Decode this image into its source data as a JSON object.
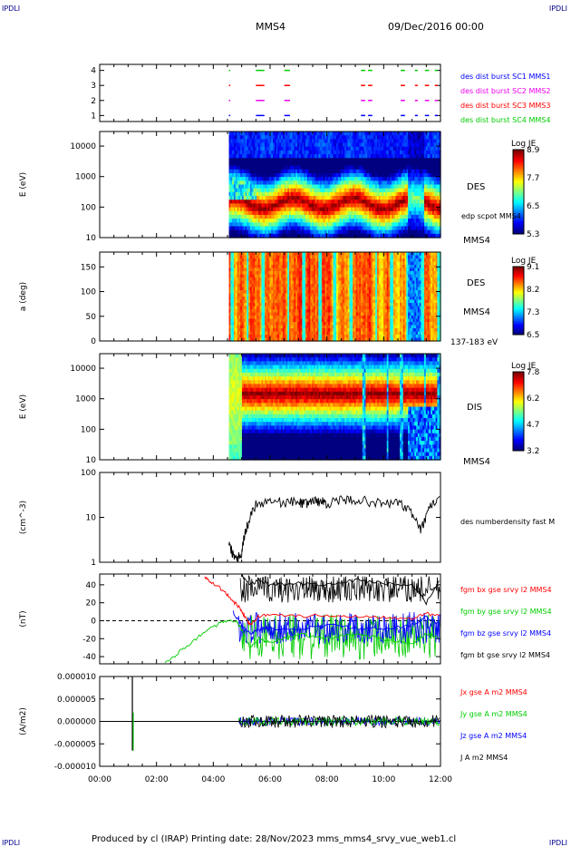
{
  "corners": {
    "tl": "IPDLI",
    "tr": "IPDLI",
    "bl": "IPDLI",
    "br": "IPDLI"
  },
  "header": {
    "spacecraft": "MMS4",
    "date": "09/Dec/2016 00:00"
  },
  "footer": {
    "text": "Produced by cl (IRAP)   Printing date: 28/Nov/2023   mms_mms4_srvy_vue_web1.cl"
  },
  "colors": {
    "blue": "#0000ff",
    "red": "#ff0000",
    "green": "#00cc00",
    "magenta": "#ee00ee",
    "black": "#000000"
  },
  "chart_data": [
    {
      "id": "burst",
      "type": "line",
      "ylim": [
        0.6,
        4.4
      ],
      "yticks": [
        "1",
        "2",
        "3",
        "4"
      ],
      "legend": [
        {
          "text": "des dist burst SC1 MMS1",
          "color": "#0000ff"
        },
        {
          "text": "des dist burst SC2 MMS2",
          "color": "#ee00ee"
        },
        {
          "text": "des dist burst SC3 MMS3",
          "color": "#ff0000"
        },
        {
          "text": "des dist burst SC4 MMS4",
          "color": "#00cc00"
        }
      ],
      "series": [
        {
          "level": 4,
          "color": "#00cc00",
          "intervals": [
            [
              4.55,
              4.6
            ],
            [
              5.5,
              5.8
            ],
            [
              6.5,
              6.7
            ],
            [
              9.2,
              9.35
            ],
            [
              9.45,
              9.6
            ],
            [
              10.6,
              10.75
            ],
            [
              11.1,
              11.2
            ],
            [
              11.45,
              11.6
            ],
            [
              11.8,
              11.9
            ]
          ]
        },
        {
          "level": 3,
          "color": "#ff0000",
          "intervals": [
            [
              4.55,
              4.6
            ],
            [
              5.5,
              5.8
            ],
            [
              6.5,
              6.7
            ],
            [
              9.2,
              9.35
            ],
            [
              9.45,
              9.6
            ],
            [
              10.6,
              10.75
            ],
            [
              11.1,
              11.2
            ],
            [
              11.45,
              11.6
            ],
            [
              11.8,
              11.9
            ]
          ]
        },
        {
          "level": 2,
          "color": "#ee00ee",
          "intervals": [
            [
              4.55,
              4.6
            ],
            [
              5.5,
              5.8
            ],
            [
              6.5,
              6.7
            ],
            [
              9.2,
              9.35
            ],
            [
              9.45,
              9.6
            ],
            [
              10.6,
              10.75
            ],
            [
              11.1,
              11.2
            ],
            [
              11.45,
              11.6
            ],
            [
              11.8,
              11.9
            ]
          ]
        },
        {
          "level": 1,
          "color": "#0000ff",
          "intervals": [
            [
              4.55,
              4.6
            ],
            [
              5.5,
              5.8
            ],
            [
              6.5,
              6.7
            ],
            [
              9.2,
              9.35
            ],
            [
              9.45,
              9.6
            ],
            [
              10.6,
              10.75
            ],
            [
              11.1,
              11.2
            ],
            [
              11.45,
              11.6
            ],
            [
              11.8,
              11.9
            ]
          ]
        }
      ]
    },
    {
      "id": "des_energy",
      "type": "heatmap",
      "ylabel": "E (eV)",
      "yscale": "log",
      "ylim": [
        10,
        30000
      ],
      "yticks": [
        "10",
        "100",
        "1000",
        "10000"
      ],
      "instrument": "DES",
      "overlay_label": "edp scpot MMS4",
      "spacecraft": "MMS4",
      "colorbar": {
        "title": "Log JE",
        "ticks": [
          "8.9",
          "7.7",
          "6.5",
          "5.3"
        ]
      },
      "data_start_hour": 4.55,
      "core_log_e": 2.0,
      "core_value": 8.9
    },
    {
      "id": "des_pitch",
      "type": "heatmap",
      "ylabel": "a (deg)",
      "ylim": [
        0,
        180
      ],
      "yticks": [
        "0",
        "50",
        "100",
        "150"
      ],
      "instrument": "DES",
      "spacecraft": "MMS4",
      "energy_range": "137-183 eV",
      "colorbar": {
        "title": "Log JE",
        "ticks": [
          "9.1",
          "8.2",
          "7.3",
          "6.5"
        ]
      },
      "data_start_hour": 4.55
    },
    {
      "id": "dis_energy",
      "type": "heatmap",
      "ylabel": "E (eV)",
      "yscale": "log",
      "ylim": [
        10,
        30000
      ],
      "yticks": [
        "10",
        "100",
        "1000",
        "10000"
      ],
      "instrument": "DIS",
      "spacecraft": "MMS4",
      "colorbar": {
        "title": "Log JE",
        "ticks": [
          "7.8",
          "6.2",
          "4.7",
          "3.2"
        ]
      },
      "data_start_hour": 4.55,
      "core_log_e": 3.3
    },
    {
      "id": "density",
      "type": "line",
      "ylabel": "(cm^-3)",
      "yscale": "log",
      "ylim": [
        1,
        100
      ],
      "yticks": [
        "1",
        "10",
        "100"
      ],
      "legend": [
        {
          "text": "des numberdensity fast M",
          "color": "#000000"
        }
      ],
      "x": [
        4.55,
        4.7,
        4.85,
        5.0,
        5.1,
        5.25,
        5.5,
        6.0,
        6.5,
        7.0,
        7.2,
        7.5,
        7.8,
        8.0,
        8.5,
        9.0,
        9.5,
        10.0,
        10.5,
        11.0,
        11.3,
        11.5,
        11.7,
        12.0
      ],
      "y": [
        2.5,
        1.5,
        1.3,
        1.6,
        4.0,
        8.0,
        20,
        24,
        22,
        23,
        20,
        24,
        23,
        21,
        24,
        25,
        23,
        20,
        22,
        12,
        5,
        10,
        20,
        25
      ]
    },
    {
      "id": "magnetic",
      "type": "line",
      "ylabel": "(nT)",
      "ylim": [
        -48,
        52
      ],
      "yticks": [
        "-40",
        "-20",
        "0",
        "20",
        "40"
      ],
      "zero_line": true,
      "legend": [
        {
          "text": "fgm bx gse srvy l2 MMS4",
          "color": "#ff0000"
        },
        {
          "text": "fgm by gse srvy l2 MMS4",
          "color": "#00cc00"
        },
        {
          "text": "fgm bz gse srvy l2 MMS4",
          "color": "#0000ff"
        },
        {
          "text": "fgm bt gse srvy l2 MMS4",
          "color": "#000000"
        }
      ],
      "series": [
        {
          "name": "bx",
          "color": "#ff0000",
          "x": [
            3.7,
            4.0,
            4.3,
            4.6,
            4.9,
            5.1,
            5.3,
            5.6,
            6.0,
            7.0,
            8.0,
            9.0,
            10.0,
            11.0,
            11.5,
            12.0
          ],
          "y": [
            48,
            42,
            35,
            25,
            15,
            5,
            -5,
            5,
            8,
            5,
            6,
            5,
            4,
            3,
            8,
            5
          ]
        },
        {
          "name": "by",
          "color": "#00cc00",
          "x": [
            2.3,
            2.8,
            3.3,
            3.8,
            4.3,
            4.8,
            5.0,
            5.3,
            5.6,
            6.0,
            7.0,
            8.0,
            9.0,
            10.0,
            11.0,
            11.5,
            12.0
          ],
          "y": [
            -48,
            -35,
            -22,
            -10,
            -2,
            0,
            -10,
            -30,
            -20,
            -25,
            -15,
            -20,
            -15,
            -20,
            -25,
            -15,
            -20
          ]
        },
        {
          "name": "bz",
          "color": "#0000ff",
          "x": [
            4.7,
            5.0,
            5.3,
            5.6,
            6.0,
            7.0,
            8.0,
            9.0,
            10.0,
            11.0,
            11.5,
            12.0
          ],
          "y": [
            10,
            -5,
            -15,
            -10,
            -8,
            -10,
            -5,
            -8,
            -10,
            -5,
            5,
            -5
          ]
        },
        {
          "name": "bt",
          "color": "#000000",
          "x": [
            5.0,
            5.3,
            5.6,
            6.0,
            7.0,
            8.0,
            9.0,
            10.0,
            11.0,
            11.5,
            12.0
          ],
          "y": [
            50,
            40,
            45,
            40,
            42,
            40,
            45,
            42,
            40,
            20,
            45
          ]
        }
      ],
      "noise_series": [
        {
          "color": "#000000",
          "from": 4.95,
          "base": 35,
          "amp": 15
        },
        {
          "color": "#00cc00",
          "from": 5.0,
          "base": -18,
          "amp": 25
        },
        {
          "color": "#0000ff",
          "from": 4.9,
          "base": -8,
          "amp": 18
        }
      ]
    },
    {
      "id": "current",
      "type": "line",
      "ylabel": "(A/m2)",
      "ylim": [
        -1e-05,
        1e-05
      ],
      "yticks": [
        "-0.000010",
        "-0.000005",
        "0.000000",
        "0.000005",
        "0.000010"
      ],
      "legend": [
        {
          "text": "Jx gse A m2 MMS4",
          "color": "#ff0000"
        },
        {
          "text": "Jy gse A m2 MMS4",
          "color": "#00cc00"
        },
        {
          "text": "Jz gse A m2 MMS4",
          "color": "#0000ff"
        },
        {
          "text": "J A m2 MMS4",
          "color": "#000000"
        }
      ],
      "spike": {
        "x": 1.15,
        "y_max": 1e-05,
        "y_min": -6.5e-06
      },
      "noise_from": 4.9,
      "noise_amp": 1.2e-06
    }
  ],
  "time_axis": {
    "labels": [
      "00:00",
      "02:00",
      "04:00",
      "06:00",
      "08:00",
      "10:00",
      "12:00"
    ],
    "xlim": [
      0,
      12
    ]
  }
}
